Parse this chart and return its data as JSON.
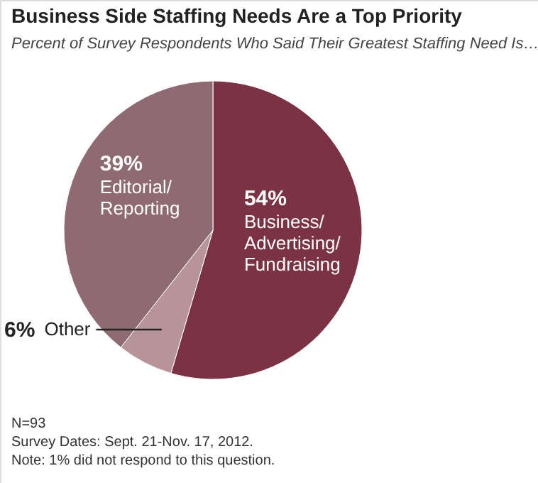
{
  "chart_data": {
    "type": "pie",
    "title": "Business Side Staffing Needs Are a Top Priority",
    "subtitle": "Percent of Survey Respondents Who Said Their Greatest Staffing Need Is…",
    "categories": [
      "Business/ Advertising/ Fundraising",
      "Other",
      "Editorial/ Reporting"
    ],
    "values": [
      54,
      6,
      39
    ],
    "colors": [
      "#7b3242",
      "#b7949a",
      "#8e6a72"
    ],
    "value_labels": [
      "54%",
      "6%",
      "39%"
    ],
    "annotations": [
      "N=93",
      "Survey Dates: Sept. 21-Nov. 17, 2012.",
      "Note: 1% did not respond to this question."
    ]
  }
}
